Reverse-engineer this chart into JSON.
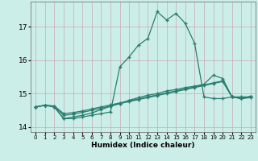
{
  "xlabel": "Humidex (Indice chaleur)",
  "x": [
    0,
    1,
    2,
    3,
    4,
    5,
    6,
    7,
    8,
    9,
    10,
    11,
    12,
    13,
    14,
    15,
    16,
    17,
    18,
    19,
    20,
    21,
    22,
    23
  ],
  "line1": [
    14.6,
    14.65,
    14.6,
    14.25,
    14.25,
    14.3,
    14.35,
    14.4,
    14.45,
    15.8,
    16.1,
    16.45,
    16.65,
    17.45,
    17.2,
    17.4,
    17.1,
    16.5,
    14.9,
    14.85,
    14.85,
    14.9,
    14.9,
    14.9
  ],
  "line2": [
    14.6,
    14.65,
    14.6,
    14.25,
    14.3,
    14.35,
    14.42,
    14.52,
    14.62,
    14.7,
    14.8,
    14.88,
    14.95,
    15.0,
    15.08,
    15.12,
    15.18,
    15.22,
    15.28,
    15.55,
    15.45,
    14.9,
    14.85,
    14.88
  ],
  "line3": [
    14.6,
    14.65,
    14.62,
    14.35,
    14.38,
    14.44,
    14.5,
    14.56,
    14.63,
    14.7,
    14.76,
    14.82,
    14.88,
    14.94,
    15.0,
    15.06,
    15.12,
    15.18,
    15.24,
    15.3,
    15.36,
    14.9,
    14.85,
    14.9
  ],
  "line4": [
    14.6,
    14.65,
    14.63,
    14.4,
    14.43,
    14.48,
    14.54,
    14.6,
    14.66,
    14.72,
    14.78,
    14.84,
    14.9,
    14.96,
    15.02,
    15.08,
    15.14,
    15.2,
    15.26,
    15.32,
    15.38,
    14.9,
    14.86,
    14.92
  ],
  "line_color": "#2a7d6f",
  "bg_color": "#cceee8",
  "grid_color": "#c8a8b8",
  "ylim": [
    13.85,
    17.75
  ],
  "yticks": [
    14,
    15,
    16,
    17
  ],
  "xticks": [
    0,
    1,
    2,
    3,
    4,
    5,
    6,
    7,
    8,
    9,
    10,
    11,
    12,
    13,
    14,
    15,
    16,
    17,
    18,
    19,
    20,
    21,
    22,
    23
  ]
}
